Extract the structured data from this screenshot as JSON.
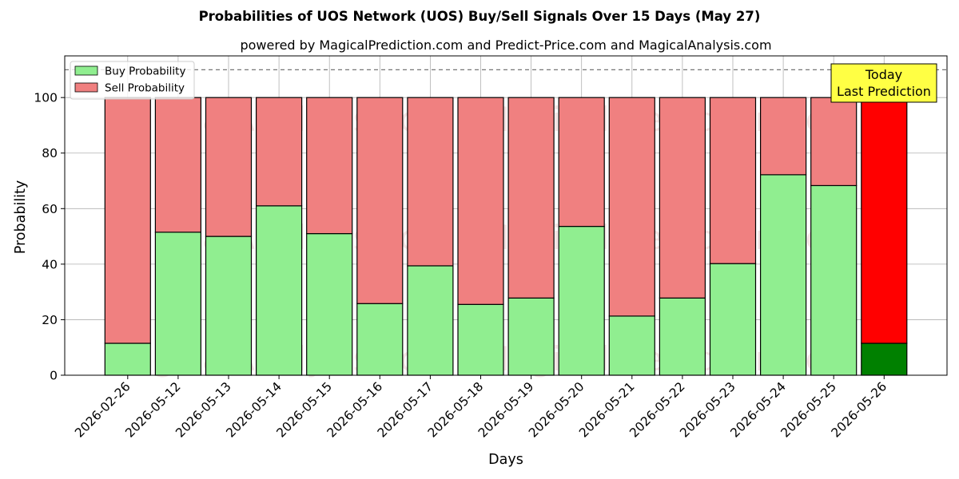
{
  "title": "Probabilities of UOS Network (UOS) Buy/Sell Signals Over 15 Days (May 27)",
  "subtitle": "powered by MagicalPrediction.com and Predict-Price.com and MagicalAnalysis.com",
  "watermarks": [
    "MagicalAnalysis.com",
    "MagicalPrediction.com"
  ],
  "annotation": {
    "line1": "Today",
    "line2": "Last Prediction"
  },
  "legend": {
    "buy": "Buy Probability",
    "sell": "Sell Probability"
  },
  "colors": {
    "buy": "#90ee90",
    "sell": "#f08080",
    "today_buy": "#008000",
    "today_sell": "#ff0000",
    "annotation_bg": "#ffff44",
    "grid": "#b0b0b0"
  },
  "chart_data": {
    "type": "bar",
    "stacked": true,
    "xlabel": "Days",
    "ylabel": "Probability",
    "ylim": [
      0,
      115
    ],
    "yticks": [
      0,
      20,
      40,
      60,
      80,
      100
    ],
    "reference_line": 110,
    "grid": true,
    "legend_position": "top-left",
    "categories": [
      "2026-02-26",
      "2026-05-12",
      "2026-05-13",
      "2026-05-14",
      "2026-05-15",
      "2026-05-16",
      "2026-05-17",
      "2026-05-18",
      "2026-05-19",
      "2026-05-20",
      "2026-05-21",
      "2026-05-22",
      "2026-05-23",
      "2026-05-24",
      "2026-05-25",
      "2026-05-26"
    ],
    "series": [
      {
        "name": "Buy Probability",
        "values": [
          11.5,
          51.5,
          50,
          61,
          51,
          25.8,
          39.4,
          25.5,
          27.8,
          53.6,
          21.3,
          27.8,
          40.2,
          72.2,
          68.3,
          11.5
        ]
      },
      {
        "name": "Sell Probability",
        "values": [
          88.5,
          48.5,
          50,
          39,
          49,
          74.2,
          60.6,
          74.5,
          72.2,
          46.4,
          78.7,
          72.2,
          59.8,
          27.8,
          31.7,
          88.5
        ]
      }
    ],
    "highlight_last": true
  }
}
